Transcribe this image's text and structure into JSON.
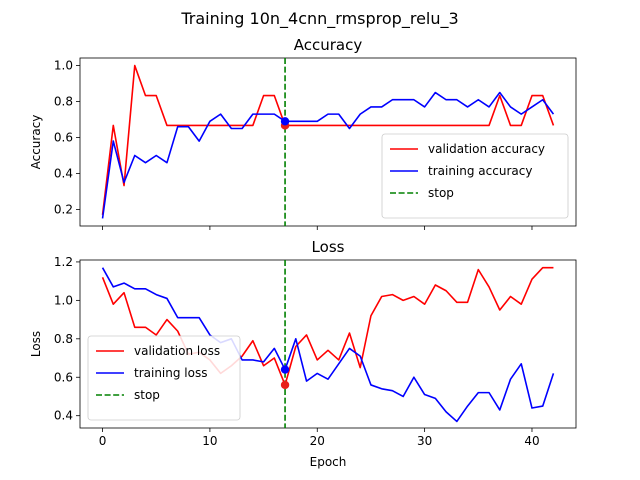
{
  "suptitle": "Training 10n_4cnn_rmsprop_relu_3",
  "chart_data": [
    {
      "type": "line",
      "title": "Accuracy",
      "xlabel": "",
      "ylabel": "Accuracy",
      "xlim": [
        -2.1,
        44.1
      ],
      "ylim": [
        0.108,
        1.042
      ],
      "x_ticks": [
        0,
        10,
        20,
        30,
        40
      ],
      "x_tick_labels": [
        "",
        "",
        "",
        "",
        ""
      ],
      "y_ticks": [
        0.2,
        0.4,
        0.6,
        0.8,
        1.0
      ],
      "y_tick_labels": [
        "0.2",
        "0.4",
        "0.6",
        "0.8",
        "1.0"
      ],
      "legend_position": "lower-right",
      "series": [
        {
          "name": "validation accuracy",
          "color": "#ff0000",
          "style": "solid",
          "x": [
            0,
            1,
            2,
            3,
            4,
            5,
            6,
            7,
            8,
            9,
            10,
            11,
            12,
            13,
            14,
            15,
            16,
            17,
            18,
            19,
            20,
            21,
            22,
            23,
            24,
            25,
            26,
            27,
            28,
            29,
            30,
            31,
            32,
            33,
            34,
            35,
            36,
            37,
            38,
            39,
            40,
            41,
            42
          ],
          "y": [
            0.17,
            0.667,
            0.333,
            1.0,
            0.833,
            0.833,
            0.667,
            0.667,
            0.667,
            0.667,
            0.667,
            0.667,
            0.667,
            0.667,
            0.667,
            0.833,
            0.833,
            0.667,
            0.667,
            0.667,
            0.667,
            0.667,
            0.667,
            0.667,
            0.667,
            0.667,
            0.667,
            0.667,
            0.667,
            0.667,
            0.667,
            0.667,
            0.667,
            0.667,
            0.667,
            0.667,
            0.667,
            0.833,
            0.667,
            0.667,
            0.833,
            0.833,
            0.667
          ]
        },
        {
          "name": "training accuracy",
          "color": "#0000ff",
          "style": "solid",
          "x": [
            0,
            1,
            2,
            3,
            4,
            5,
            6,
            7,
            8,
            9,
            10,
            11,
            12,
            13,
            14,
            15,
            16,
            17,
            18,
            19,
            20,
            21,
            22,
            23,
            24,
            25,
            26,
            27,
            28,
            29,
            30,
            31,
            32,
            33,
            34,
            35,
            36,
            37,
            38,
            39,
            40,
            41,
            42
          ],
          "y": [
            0.15,
            0.58,
            0.35,
            0.5,
            0.46,
            0.5,
            0.46,
            0.66,
            0.66,
            0.58,
            0.69,
            0.73,
            0.65,
            0.65,
            0.73,
            0.73,
            0.73,
            0.69,
            0.69,
            0.69,
            0.69,
            0.73,
            0.73,
            0.65,
            0.73,
            0.77,
            0.77,
            0.81,
            0.81,
            0.81,
            0.77,
            0.85,
            0.81,
            0.81,
            0.77,
            0.81,
            0.77,
            0.85,
            0.77,
            0.73,
            0.77,
            0.81,
            0.73
          ]
        },
        {
          "name": "stop",
          "color": "#008000",
          "style": "dashed",
          "x_value": 17
        }
      ],
      "markers": [
        {
          "x": 17,
          "y": 0.667,
          "color": "#e8211a"
        },
        {
          "x": 17,
          "y": 0.69,
          "color": "#0000ff"
        }
      ]
    },
    {
      "type": "line",
      "title": "Loss",
      "xlabel": "Epoch",
      "ylabel": "Loss",
      "xlim": [
        -2.1,
        44.1
      ],
      "ylim": [
        0.336,
        1.21
      ],
      "x_ticks": [
        0,
        10,
        20,
        30,
        40
      ],
      "x_tick_labels": [
        "0",
        "10",
        "20",
        "30",
        "40"
      ],
      "y_ticks": [
        0.4,
        0.6,
        0.8,
        1.0,
        1.2
      ],
      "y_tick_labels": [
        "0.4",
        "0.6",
        "0.8",
        "1.0",
        "1.2"
      ],
      "legend_position": "lower-left",
      "series": [
        {
          "name": "validation loss",
          "color": "#ff0000",
          "style": "solid",
          "x": [
            0,
            1,
            2,
            3,
            4,
            5,
            6,
            7,
            8,
            9,
            10,
            11,
            12,
            13,
            14,
            15,
            16,
            17,
            18,
            19,
            20,
            21,
            22,
            23,
            24,
            25,
            26,
            27,
            28,
            29,
            30,
            31,
            32,
            33,
            34,
            35,
            36,
            37,
            38,
            39,
            40,
            41,
            42
          ],
          "y": [
            1.12,
            0.98,
            1.04,
            0.86,
            0.86,
            0.82,
            0.9,
            0.84,
            0.72,
            0.73,
            0.69,
            0.62,
            0.66,
            0.71,
            0.79,
            0.66,
            0.7,
            0.56,
            0.76,
            0.82,
            0.69,
            0.74,
            0.69,
            0.83,
            0.65,
            0.92,
            1.02,
            1.03,
            1.0,
            1.02,
            0.98,
            1.08,
            1.05,
            0.99,
            0.99,
            1.16,
            1.07,
            0.95,
            1.02,
            0.98,
            1.11,
            1.17,
            1.17
          ]
        },
        {
          "name": "training loss",
          "color": "#0000ff",
          "style": "solid",
          "x": [
            0,
            1,
            2,
            3,
            4,
            5,
            6,
            7,
            8,
            9,
            10,
            11,
            12,
            13,
            14,
            15,
            16,
            17,
            18,
            19,
            20,
            21,
            22,
            23,
            24,
            25,
            26,
            27,
            28,
            29,
            30,
            31,
            32,
            33,
            34,
            35,
            36,
            37,
            38,
            39,
            40,
            41,
            42
          ],
          "y": [
            1.17,
            1.07,
            1.09,
            1.06,
            1.06,
            1.03,
            1.01,
            0.91,
            0.91,
            0.91,
            0.82,
            0.78,
            0.8,
            0.69,
            0.69,
            0.68,
            0.75,
            0.64,
            0.8,
            0.58,
            0.62,
            0.59,
            0.67,
            0.75,
            0.71,
            0.56,
            0.54,
            0.53,
            0.5,
            0.6,
            0.51,
            0.49,
            0.42,
            0.37,
            0.45,
            0.52,
            0.52,
            0.43,
            0.59,
            0.67,
            0.44,
            0.45,
            0.62
          ]
        },
        {
          "name": "stop",
          "color": "#008000",
          "style": "dashed",
          "x_value": 17
        }
      ],
      "markers": [
        {
          "x": 17,
          "y": 0.56,
          "color": "#e8211a"
        },
        {
          "x": 17,
          "y": 0.64,
          "color": "#0000ff"
        }
      ]
    }
  ]
}
